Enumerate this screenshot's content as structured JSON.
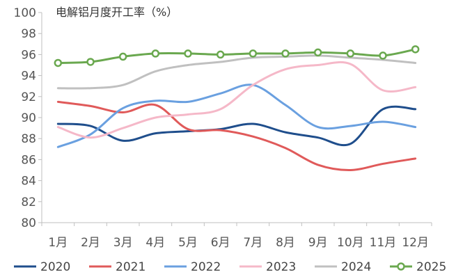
{
  "chart_data": {
    "type": "line",
    "title": "电解铝月度开工率（%）",
    "categories": [
      "1月",
      "2月",
      "3月",
      "4月",
      "5月",
      "6月",
      "7月",
      "8月",
      "9月",
      "10月",
      "11月",
      "12月"
    ],
    "ylim": [
      80,
      100
    ],
    "yticks": [
      80,
      82,
      84,
      86,
      88,
      90,
      92,
      94,
      96,
      98,
      100
    ],
    "grid": false,
    "legend_position": "bottom",
    "series": [
      {
        "name": "2020",
        "color": "#1f4e8c",
        "marker": false,
        "values": [
          89.4,
          89.2,
          87.8,
          88.5,
          88.7,
          88.9,
          89.4,
          88.6,
          88.1,
          87.5,
          90.8,
          90.8
        ]
      },
      {
        "name": "2021",
        "color": "#e05a5a",
        "marker": false,
        "values": [
          91.5,
          91.1,
          90.5,
          91.2,
          88.9,
          88.8,
          88.2,
          87.1,
          85.5,
          85.0,
          85.6,
          86.1
        ]
      },
      {
        "name": "2022",
        "color": "#6aa0e0",
        "marker": false,
        "values": [
          87.2,
          88.4,
          90.9,
          91.6,
          91.5,
          92.3,
          93.1,
          91.2,
          89.1,
          89.2,
          89.6,
          89.1
        ]
      },
      {
        "name": "2023",
        "color": "#f5b8c8",
        "marker": false,
        "values": [
          89.1,
          88.1,
          89.0,
          90.0,
          90.3,
          90.8,
          93.1,
          94.6,
          95.0,
          95.1,
          92.6,
          92.9
        ]
      },
      {
        "name": "2024",
        "color": "#c0c0c0",
        "marker": false,
        "values": [
          92.8,
          92.8,
          93.1,
          94.4,
          95.0,
          95.3,
          95.7,
          95.8,
          95.9,
          95.7,
          95.5,
          95.2
        ]
      },
      {
        "name": "2025",
        "color": "#6aa84f",
        "marker": true,
        "values": [
          95.2,
          95.3,
          95.8,
          96.1,
          96.1,
          96.0,
          96.1,
          96.1,
          96.2,
          96.1,
          95.9,
          96.5
        ]
      }
    ]
  }
}
